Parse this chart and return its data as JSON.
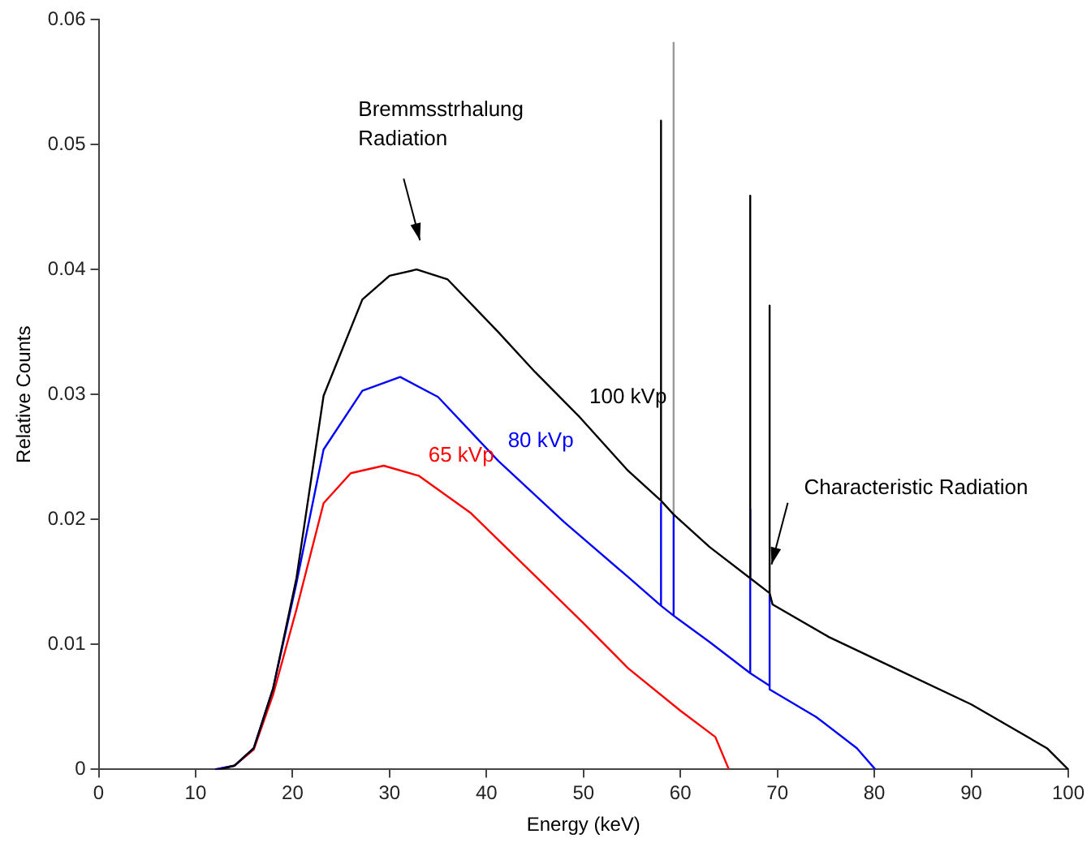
{
  "chart_data": {
    "type": "line",
    "xlabel": "Energy (keV)",
    "ylabel": "Relative Counts",
    "xlim": [
      0,
      100
    ],
    "ylim": [
      0,
      0.06
    ],
    "xticks": [
      0,
      10,
      20,
      30,
      40,
      50,
      60,
      70,
      80,
      90,
      100
    ],
    "yticks": [
      0,
      0.01,
      0.02,
      0.03,
      0.04,
      0.05,
      0.06
    ],
    "grid": false,
    "legend": false,
    "marker": "none",
    "line_style": "solid",
    "series": [
      {
        "name": "100 kVp",
        "color": "#000000",
        "x": [
          12,
          12.5,
          14,
          16,
          18,
          20.4,
          23.2,
          27.2,
          30,
          32.8,
          36,
          41.2,
          45,
          49.6,
          54.6,
          58,
          58,
          58,
          59.3,
          63,
          67.2,
          67.2,
          67.2,
          69.2,
          69.2,
          69.2,
          69.5,
          75.3,
          81,
          90,
          97.8,
          100
        ],
        "values": [
          0,
          0,
          0.0003,
          0.0017,
          0.0065,
          0.0153,
          0.0299,
          0.0376,
          0.0395,
          0.04,
          0.0392,
          0.035,
          0.0318,
          0.0282,
          0.0239,
          0.0215,
          0.0519,
          0.0215,
          0.0204,
          0.0178,
          0.0153,
          0.0459,
          0.0153,
          0.0141,
          0.0371,
          0.0141,
          0.0132,
          0.0106,
          0.0085,
          0.0052,
          0.0017,
          0
        ]
      },
      {
        "name": "80 kVp",
        "color": "#0000ff",
        "x": [
          12,
          14,
          16,
          18,
          20.4,
          23.2,
          27.2,
          31.1,
          35,
          41.2,
          48,
          54.6,
          58,
          58,
          58,
          59.3,
          59.3,
          59.3,
          63,
          67.2,
          67.2,
          67.2,
          69.2,
          69.2,
          69.2,
          74,
          78.2,
          80.1
        ],
        "values": [
          0,
          0.0003,
          0.0017,
          0.0065,
          0.0149,
          0.0256,
          0.0303,
          0.0314,
          0.0298,
          0.0247,
          0.0198,
          0.0154,
          0.0131,
          0.0213,
          0.0131,
          0.0123,
          0.0204,
          0.0123,
          0.0102,
          0.0077,
          0.0208,
          0.0077,
          0.0067,
          0.014,
          0.0064,
          0.0042,
          0.0017,
          0
        ]
      },
      {
        "name": "65 kVp",
        "color": "#ff0000",
        "x": [
          12,
          14,
          16,
          18,
          20.4,
          23.2,
          26,
          29.4,
          33,
          38.4,
          45,
          50,
          54.6,
          60,
          63.6,
          65
        ],
        "values": [
          0,
          0.0003,
          0.0016,
          0.006,
          0.0128,
          0.0213,
          0.0237,
          0.0243,
          0.0235,
          0.0205,
          0.0155,
          0.0117,
          0.0081,
          0.0047,
          0.0026,
          0
        ]
      },
      {
        "color": "#999999",
        "x": [
          59.3,
          59.3
        ],
        "values": [
          0.0204,
          0.0582
        ]
      }
    ],
    "annotations": [
      "Bremmsstrhalung\nRadiation",
      {
        "text": "Characteristic Radiation",
        "x": 69.4,
        "y": 0.0164
      }
    ]
  }
}
